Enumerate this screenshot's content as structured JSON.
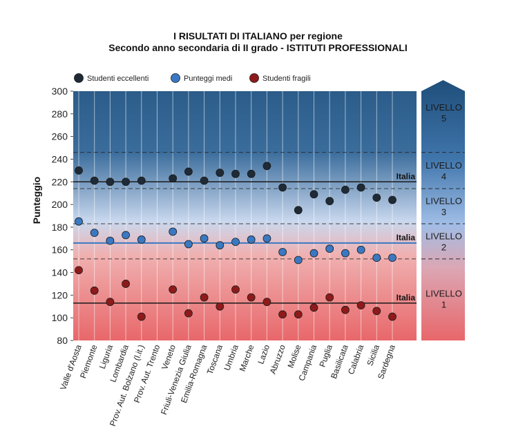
{
  "chart_data": {
    "type": "scatter",
    "title": "I RISULTATI DI ITALIANO per regione",
    "subtitle": "Secondo anno secondaria di II grado - ISTITUTI PROFESSIONALI",
    "xlabel": "",
    "ylabel": "Punteggio",
    "ylim": [
      80,
      300
    ],
    "yticks": [
      80,
      100,
      120,
      140,
      160,
      180,
      200,
      220,
      240,
      260,
      280,
      300
    ],
    "grid": false,
    "legend_position": "top-left",
    "categories": [
      "Valle d'Aosta",
      "Piemonte",
      "Liguria",
      "Lombardia",
      "Prov. Aut. Bolzano (l.it.)",
      "Prov. Aut. Trento",
      "Veneto",
      "Friuli-Venezia Giulia",
      "Emilia-Romagna",
      "Toscana",
      "Umbria",
      "Marche",
      "Lazio",
      "Abruzzo",
      "Molise",
      "Campania",
      "Puglia",
      "Basilicata",
      "Calabria",
      "Sicilia",
      "Sardegna"
    ],
    "series": [
      {
        "name": "Studenti eccellenti",
        "color": "#1e2a36",
        "values": [
          230,
          221,
          220,
          220,
          221,
          null,
          223,
          229,
          221,
          228,
          227,
          227,
          234,
          215,
          195,
          209,
          203,
          213,
          215,
          206,
          204
        ]
      },
      {
        "name": "Punteggi medi",
        "color": "#3a78c2",
        "values": [
          185,
          175,
          168,
          173,
          169,
          null,
          176,
          165,
          170,
          164,
          167,
          169,
          170,
          158,
          151,
          157,
          161,
          157,
          160,
          153,
          153
        ]
      },
      {
        "name": "Studenti fragili",
        "color": "#8e1a1a",
        "values": [
          142,
          124,
          114,
          130,
          101,
          null,
          125,
          104,
          118,
          110,
          125,
          118,
          114,
          103,
          103,
          109,
          118,
          107,
          111,
          106,
          101
        ]
      }
    ],
    "reference_lines": [
      {
        "label": "Italia",
        "value": 220
      },
      {
        "label": "Italia",
        "value": 166
      },
      {
        "label": "Italia",
        "value": 113
      }
    ],
    "level_thresholds": [
      152,
      183,
      214,
      246
    ],
    "levels": [
      {
        "label": "LIVELLO",
        "number": "1",
        "range": [
          80,
          152
        ]
      },
      {
        "label": "LIVELLO",
        "number": "2",
        "range": [
          152,
          183
        ]
      },
      {
        "label": "LIVELLO",
        "number": "3",
        "range": [
          183,
          214
        ]
      },
      {
        "label": "LIVELLO",
        "number": "4",
        "range": [
          214,
          246
        ]
      },
      {
        "label": "LIVELLO",
        "number": "5",
        "range": [
          246,
          300
        ]
      }
    ],
    "colors": {
      "top": "#2b5c8a",
      "mid": "#c9d8ee",
      "bottom": "#e8676a",
      "main_reference_line": "#1a1a1a",
      "mean_reference_line": "#3a78c2"
    }
  }
}
